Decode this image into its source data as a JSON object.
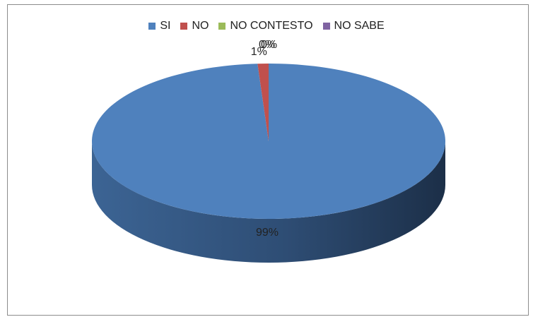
{
  "chart_data": {
    "type": "pie",
    "categories": [
      "SI",
      "NO",
      "NO CONTESTO",
      "NO SABE"
    ],
    "values": [
      99,
      1,
      0,
      0
    ],
    "data_labels": [
      "99%",
      "1%",
      "0%",
      "0%"
    ],
    "colors": [
      "#4f81bd",
      "#c0504d",
      "#9bbb59",
      "#8064a2"
    ],
    "legend_position": "top",
    "three_d": true
  }
}
